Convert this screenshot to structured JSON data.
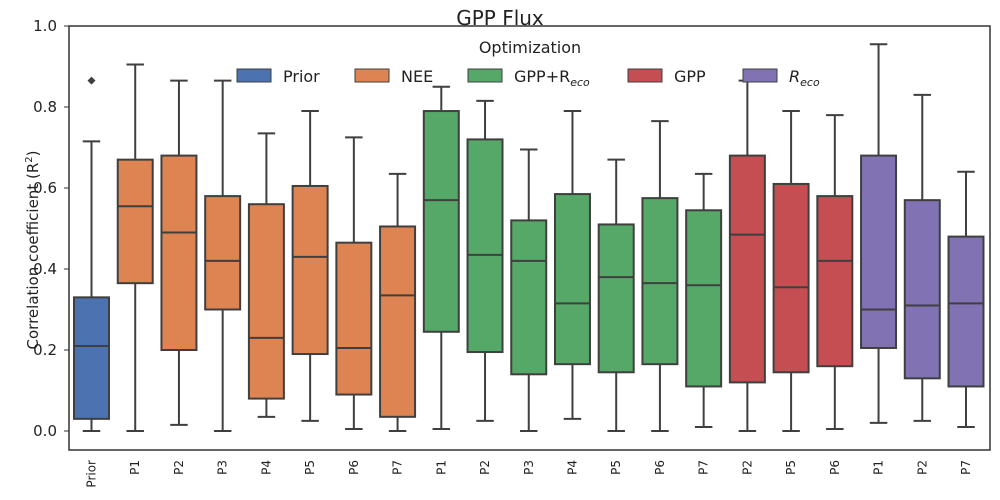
{
  "chart_data": {
    "type": "box",
    "title": "GPP Flux",
    "xlabel": "",
    "ylabel": "Correlation coefficient (R",
    "ylabel_sup": "2",
    "ylabel_tail": ")",
    "ylim": [
      -0.05,
      1.0
    ],
    "yticks": [
      0.0,
      0.2,
      0.4,
      0.6,
      0.8,
      1.0
    ],
    "ytick_labels": [
      "0.0",
      "0.2",
      "0.4",
      "0.6",
      "0.8",
      "1.0"
    ],
    "grid": false,
    "legend": {
      "title": "Optimization",
      "placement": "top-center",
      "entries": [
        {
          "label": "Prior",
          "sub": "",
          "color": "#4c72b0"
        },
        {
          "label": "NEE",
          "sub": "",
          "color": "#dd8452"
        },
        {
          "label": "GPP+R",
          "sub": "eco",
          "color": "#55a868"
        },
        {
          "label": "GPP",
          "sub": "",
          "color": "#c44e52"
        },
        {
          "label": "R",
          "sub": "eco",
          "color": "#8172b3"
        }
      ]
    },
    "boxes": [
      {
        "label": "Prior",
        "group": 0,
        "min": 0.0,
        "q1": 0.03,
        "median": 0.21,
        "q3": 0.33,
        "max": 0.715,
        "outliers": [
          0.865
        ]
      },
      {
        "label": "P1",
        "group": 1,
        "min": 0.0,
        "q1": 0.365,
        "median": 0.555,
        "q3": 0.67,
        "max": 0.905,
        "outliers": []
      },
      {
        "label": "P2",
        "group": 1,
        "min": 0.015,
        "q1": 0.2,
        "median": 0.49,
        "q3": 0.68,
        "max": 0.865,
        "outliers": []
      },
      {
        "label": "P3",
        "group": 1,
        "min": 0.0,
        "q1": 0.3,
        "median": 0.42,
        "q3": 0.58,
        "max": 0.865,
        "outliers": []
      },
      {
        "label": "P4",
        "group": 1,
        "min": 0.035,
        "q1": 0.08,
        "median": 0.23,
        "q3": 0.56,
        "max": 0.735,
        "outliers": []
      },
      {
        "label": "P5",
        "group": 1,
        "min": 0.025,
        "q1": 0.19,
        "median": 0.43,
        "q3": 0.605,
        "max": 0.79,
        "outliers": []
      },
      {
        "label": "P6",
        "group": 1,
        "min": 0.005,
        "q1": 0.09,
        "median": 0.205,
        "q3": 0.465,
        "max": 0.725,
        "outliers": []
      },
      {
        "label": "P7",
        "group": 1,
        "min": 0.0,
        "q1": 0.035,
        "median": 0.335,
        "q3": 0.505,
        "max": 0.635,
        "outliers": []
      },
      {
        "label": "P1",
        "group": 2,
        "min": 0.005,
        "q1": 0.245,
        "median": 0.57,
        "q3": 0.79,
        "max": 0.85,
        "outliers": []
      },
      {
        "label": "P2",
        "group": 2,
        "min": 0.025,
        "q1": 0.195,
        "median": 0.435,
        "q3": 0.72,
        "max": 0.815,
        "outliers": []
      },
      {
        "label": "P3",
        "group": 2,
        "min": 0.0,
        "q1": 0.14,
        "median": 0.42,
        "q3": 0.52,
        "max": 0.695,
        "outliers": []
      },
      {
        "label": "P4",
        "group": 2,
        "min": 0.03,
        "q1": 0.165,
        "median": 0.315,
        "q3": 0.585,
        "max": 0.79,
        "outliers": []
      },
      {
        "label": "P5",
        "group": 2,
        "min": 0.0,
        "q1": 0.145,
        "median": 0.38,
        "q3": 0.51,
        "max": 0.67,
        "outliers": []
      },
      {
        "label": "P6",
        "group": 2,
        "min": 0.0,
        "q1": 0.165,
        "median": 0.365,
        "q3": 0.575,
        "max": 0.765,
        "outliers": []
      },
      {
        "label": "P7",
        "group": 2,
        "min": 0.01,
        "q1": 0.11,
        "median": 0.36,
        "q3": 0.545,
        "max": 0.635,
        "outliers": []
      },
      {
        "label": "P2",
        "group": 3,
        "min": 0.0,
        "q1": 0.12,
        "median": 0.485,
        "q3": 0.68,
        "max": 0.865,
        "outliers": []
      },
      {
        "label": "P5",
        "group": 3,
        "min": 0.0,
        "q1": 0.145,
        "median": 0.355,
        "q3": 0.61,
        "max": 0.79,
        "outliers": []
      },
      {
        "label": "P6",
        "group": 3,
        "min": 0.005,
        "q1": 0.16,
        "median": 0.42,
        "q3": 0.58,
        "max": 0.78,
        "outliers": []
      },
      {
        "label": "P1",
        "group": 4,
        "min": 0.02,
        "q1": 0.205,
        "median": 0.3,
        "q3": 0.68,
        "max": 0.955,
        "outliers": []
      },
      {
        "label": "P2",
        "group": 4,
        "min": 0.025,
        "q1": 0.13,
        "median": 0.31,
        "q3": 0.57,
        "max": 0.83,
        "outliers": []
      },
      {
        "label": "P7",
        "group": 4,
        "min": 0.01,
        "q1": 0.11,
        "median": 0.315,
        "q3": 0.48,
        "max": 0.64,
        "outliers": []
      }
    ]
  }
}
